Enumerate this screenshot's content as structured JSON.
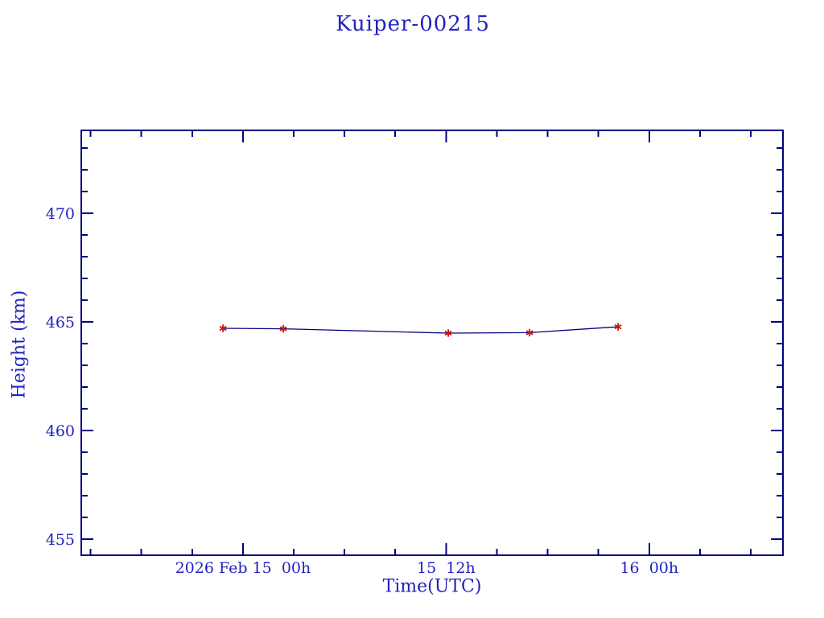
{
  "page": {
    "background": "#ffffff"
  },
  "chart": {
    "title": "Kuiper-00215",
    "xlabel": "Time(UTC)",
    "ylabel": "Height (km)",
    "colors": {
      "text": "#2222c0",
      "frame": "#000080",
      "line": "#000080",
      "marker": "#cc1111"
    }
  },
  "chart_data": {
    "type": "line",
    "title": "Kuiper-00215",
    "xlabel": "Time(UTC)",
    "ylabel": "Height (km)",
    "grid": false,
    "legend": false,
    "marker": "asterisk",
    "x_unit": "hours relative to 2026 Feb 15 00h UTC",
    "x_range_h": [
      -9.55,
      31.9
    ],
    "y_range_km": [
      454.26,
      473.81
    ],
    "x_ticks_major": [
      {
        "h": 0,
        "label": "2026 Feb 15  00h"
      },
      {
        "h": 12,
        "label": "15  12h"
      },
      {
        "h": 24,
        "label": "16  00h"
      }
    ],
    "x_minor": {
      "start_h": -9,
      "end_h": 30,
      "step_h": 3
    },
    "y_ticks_major": [
      {
        "v": 455,
        "label": "455"
      },
      {
        "v": 460,
        "label": "460"
      },
      {
        "v": 465,
        "label": "465"
      },
      {
        "v": 470,
        "label": "470"
      }
    ],
    "y_minor": {
      "start": 455,
      "end": 473,
      "step": 1
    },
    "series": [
      {
        "name": "height",
        "points": [
          {
            "t_h": -1.18,
            "height_km": 464.7
          },
          {
            "t_h": 2.38,
            "height_km": 464.68
          },
          {
            "t_h": 12.13,
            "height_km": 464.48
          },
          {
            "t_h": 16.93,
            "height_km": 464.5
          },
          {
            "t_h": 22.16,
            "height_km": 464.77
          }
        ]
      }
    ]
  }
}
